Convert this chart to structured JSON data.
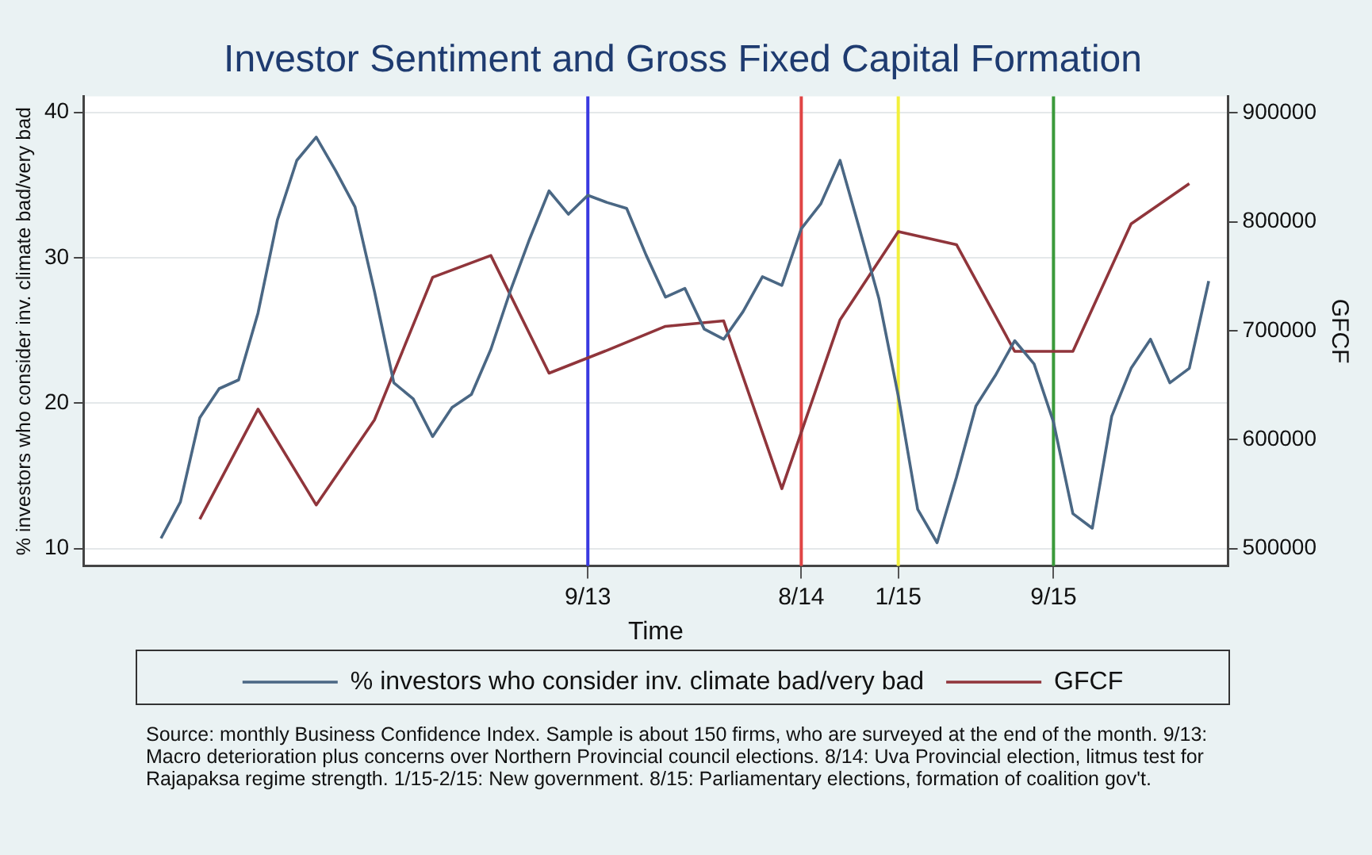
{
  "chart_data": {
    "type": "line",
    "title": "Investor Sentiment and Gross Fixed Capital Formation",
    "xlabel": "Time",
    "ylabel": "% investors who consider inv. climate bad/very bad",
    "y2label": "GFCF",
    "series": [
      {
        "name": "% investors who consider inv. climate bad/very bad",
        "color": "#4a6784",
        "axis": "y",
        "x": [
          "2011-11",
          "2011-12",
          "2012-01",
          "2012-02",
          "2012-03",
          "2012-04",
          "2012-05",
          "2012-06",
          "2012-07",
          "2012-08",
          "2012-09",
          "2012-10",
          "2012-11",
          "2012-12",
          "2013-01",
          "2013-02",
          "2013-03",
          "2013-04",
          "2013-05",
          "2013-06",
          "2013-07",
          "2013-08",
          "2013-09",
          "2013-10",
          "2013-11",
          "2013-12",
          "2014-01",
          "2014-02",
          "2014-03",
          "2014-04",
          "2014-05",
          "2014-06",
          "2014-07",
          "2014-08",
          "2014-09",
          "2014-10",
          "2014-11",
          "2014-12",
          "2015-01",
          "2015-02",
          "2015-03",
          "2015-04",
          "2015-05",
          "2015-06",
          "2015-07",
          "2015-08",
          "2015-09",
          "2015-10",
          "2015-11",
          "2015-12",
          "2016-01",
          "2016-02",
          "2016-03",
          "2016-04",
          "2016-05"
        ],
        "values": [
          10.7,
          13.2,
          19.0,
          21.0,
          21.6,
          26.2,
          32.6,
          36.7,
          38.3,
          36.0,
          33.5,
          27.7,
          21.4,
          20.3,
          17.7,
          19.7,
          20.6,
          23.7,
          27.7,
          31.3,
          34.6,
          33.0,
          34.3,
          33.8,
          33.4,
          30.2,
          27.3,
          27.9,
          25.1,
          24.4,
          26.3,
          28.7,
          28.1,
          32.0,
          33.7,
          36.7,
          32.0,
          27.2,
          20.5,
          12.7,
          10.4,
          14.9,
          19.8,
          21.9,
          24.3,
          22.7,
          18.7,
          12.4,
          11.4,
          19.1,
          22.4,
          24.4,
          21.4,
          22.4,
          28.4
        ]
      },
      {
        "name": "GFCF",
        "color": "#90353b",
        "axis": "y2",
        "x": [
          "2012-01",
          "2012-04",
          "2012-07",
          "2012-10",
          "2013-01",
          "2013-04",
          "2013-07",
          "2013-10",
          "2014-01",
          "2014-04",
          "2014-07",
          "2014-10",
          "2015-01",
          "2015-04",
          "2015-07",
          "2015-10",
          "2016-01",
          "2016-04"
        ],
        "values": [
          527000,
          628000,
          540000,
          618000,
          749000,
          769000,
          661000,
          682000,
          704000,
          709000,
          555000,
          710000,
          791000,
          779000,
          681000,
          681000,
          798000,
          835000
        ]
      }
    ],
    "xlim": [
      "2011-07",
      "2016-06"
    ],
    "xticks": [
      {
        "value": "2013-09",
        "label": "9/13"
      },
      {
        "value": "2014-08",
        "label": "8/14"
      },
      {
        "value": "2015-01",
        "label": "1/15"
      },
      {
        "value": "2015-09",
        "label": "9/15"
      }
    ],
    "ylim": [
      8.8,
      41.1
    ],
    "yticks": [
      10,
      20,
      30,
      40
    ],
    "y2lim": [
      484000,
      915000
    ],
    "y2ticks": [
      500000,
      600000,
      700000,
      800000,
      900000
    ],
    "ref_lines": [
      {
        "axis": "x",
        "value": "2013-09",
        "color": "#3a3ae0"
      },
      {
        "axis": "x",
        "value": "2014-08",
        "color": "#e04545"
      },
      {
        "axis": "x",
        "value": "2015-01",
        "color": "#f2f03c"
      },
      {
        "axis": "x",
        "value": "2015-09",
        "color": "#3a9a3a"
      }
    ],
    "grid": "y",
    "legend": "bottom",
    "annotations": [
      "Source: monthly Business Confidence Index. Sample is about 150 firms, who are surveyed at the end of the month. 9/13: Macro deterioration plus concerns over Northern Provincial council elections. 8/14: Uva Provincial election, litmus test for Rajapaksa regime strength. 1/15-2/15: New government. 8/15: Parliamentary elections, formation of coalition gov't."
    ]
  }
}
